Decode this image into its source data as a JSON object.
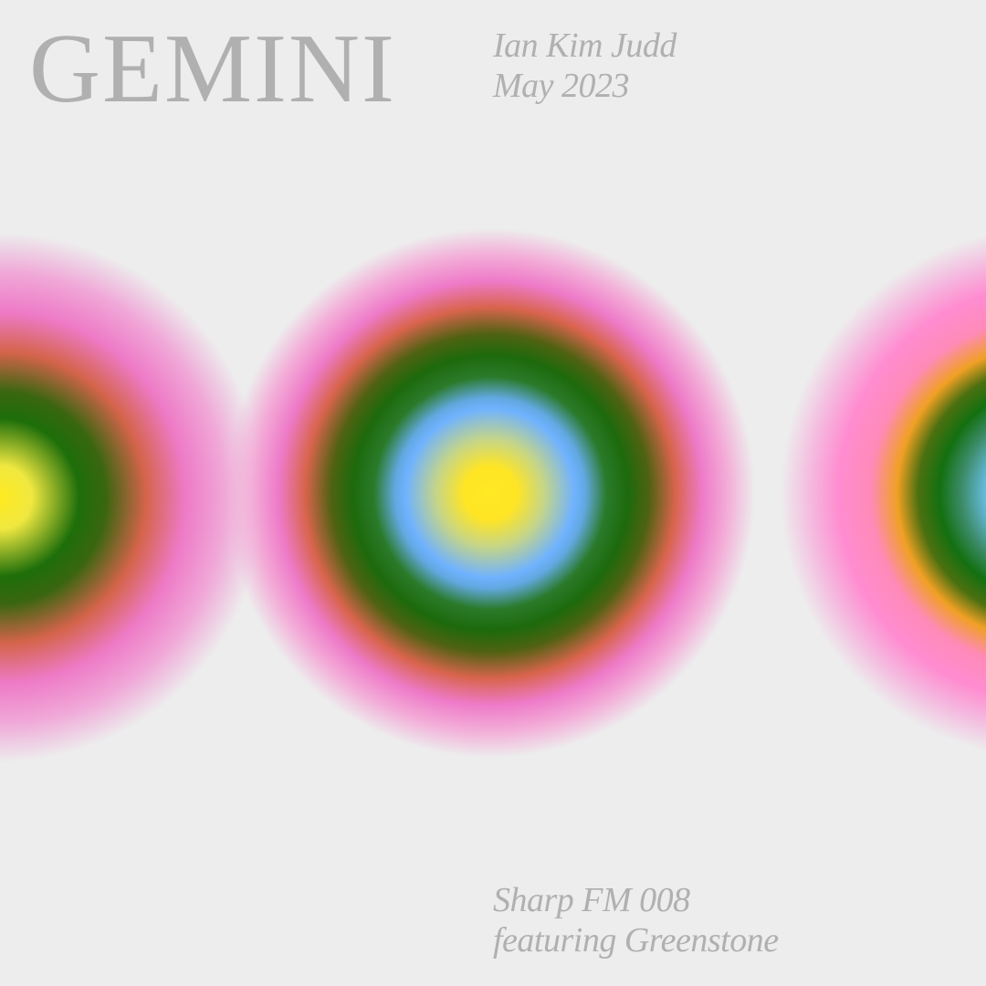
{
  "poster": {
    "title": "GEMINI",
    "artist": "Ian Kim Judd",
    "date": "May 2023",
    "series": "Sharp FM 008",
    "featuring": "featuring Greenstone"
  },
  "colors": {
    "background": "#ededed",
    "text": "#b0b0b0",
    "yellow": "#ffe824",
    "sky_blue": "#6fb2ff",
    "green": "#1d6a0c",
    "coral": "#d8644c",
    "pink": "#ee7ac8",
    "orange": "#f0a024"
  }
}
